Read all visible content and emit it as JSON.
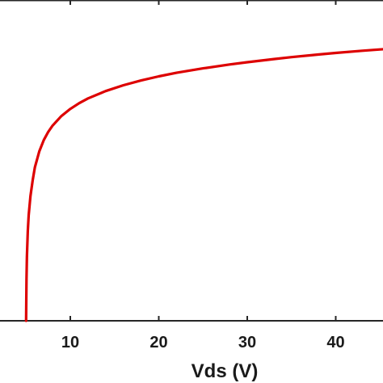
{
  "chart_data": {
    "type": "line",
    "title": "",
    "xlabel": "Vds (V)",
    "ylabel": "",
    "xlim": [
      5,
      50
    ],
    "ylim": [
      0,
      1
    ],
    "xticks": [
      10,
      20,
      30,
      40
    ],
    "xtick_labels": [
      "10",
      "20",
      "30",
      "40"
    ],
    "grid": false,
    "legend": "none",
    "series": [
      {
        "color": "#dd0000",
        "x": [
          5.0,
          5.05,
          5.1,
          5.2,
          5.3,
          5.5,
          5.75,
          6.0,
          6.5,
          7.0,
          7.5,
          8.0,
          9.0,
          10.0,
          11.0,
          12.0,
          14.0,
          16.0,
          18.0,
          20.0,
          22.0,
          25.0,
          28.0,
          30.0,
          33.0,
          35.0,
          38.0,
          40.0,
          43.0,
          45.0,
          46.0
        ],
        "y": [
          0.0,
          0.13,
          0.2,
          0.28,
          0.33,
          0.39,
          0.44,
          0.48,
          0.53,
          0.565,
          0.59,
          0.61,
          0.64,
          0.662,
          0.68,
          0.695,
          0.718,
          0.736,
          0.751,
          0.764,
          0.775,
          0.789,
          0.801,
          0.808,
          0.818,
          0.824,
          0.832,
          0.837,
          0.844,
          0.848,
          0.85
        ]
      }
    ]
  }
}
